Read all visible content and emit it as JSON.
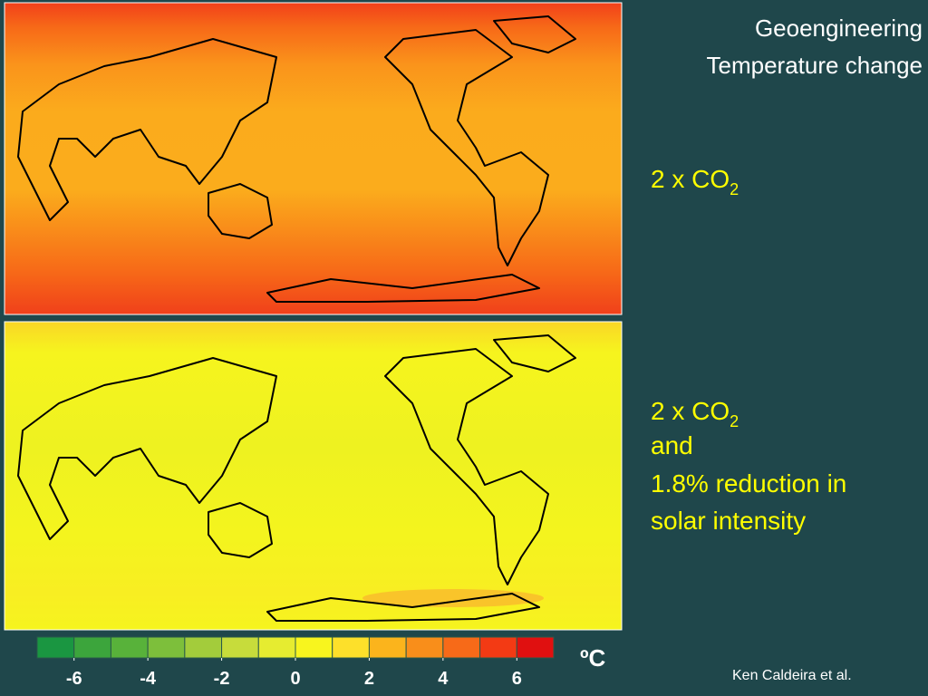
{
  "title": [
    "Geoengineering",
    "Temperature change"
  ],
  "panels": [
    {
      "label": [
        "2 x CO",
        "2"
      ]
    },
    {
      "label": [
        "2 x CO",
        "2"
      ],
      "lines": [
        "and",
        "1.8% reduction in",
        "solar intensity"
      ]
    }
  ],
  "colorbar": {
    "lim": [
      -7,
      7
    ],
    "ticks": [
      -6,
      -4,
      -2,
      0,
      2,
      4,
      6
    ],
    "unit": "ºC",
    "colors": [
      "#1a9641",
      "#3ca53c",
      "#58b23a",
      "#7dbf3b",
      "#a3cc3b",
      "#c7dc3b",
      "#e6ec30",
      "#f8f51e",
      "#fde02a",
      "#fbb41c",
      "#f98e1a",
      "#f76a18",
      "#f33a14",
      "#e01010"
    ]
  },
  "credit": "Ken Caldeira et al."
}
